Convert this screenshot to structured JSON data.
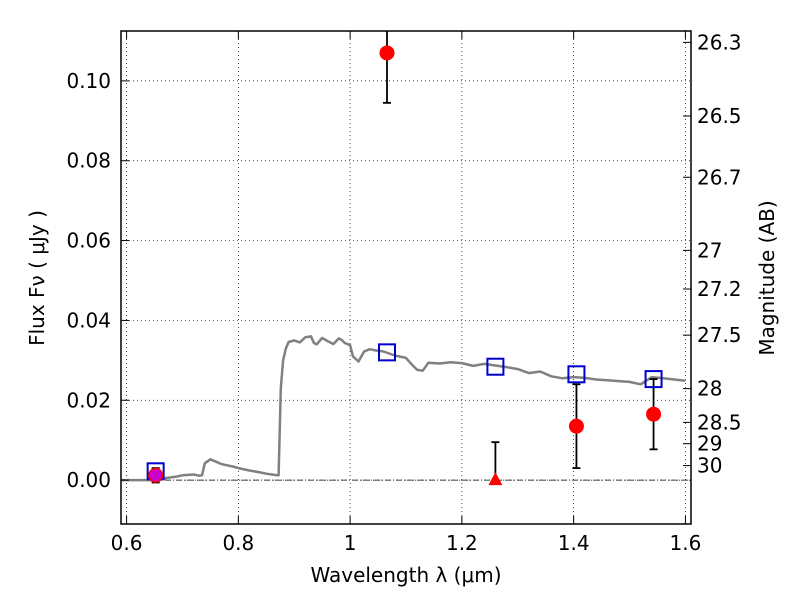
{
  "chart_data": {
    "type": "scatter",
    "xlabel": "Wavelength  λ (μm)",
    "ylabel": "Flux  Fν  ( μJy )",
    "y2label": "Magnitude (AB)",
    "xlim": [
      0.59,
      1.61
    ],
    "ylim": [
      -0.011,
      0.1125
    ],
    "grid": true,
    "x_ticks": [
      {
        "value": 0.6,
        "label": "0.6"
      },
      {
        "value": 0.8,
        "label": "0.8"
      },
      {
        "value": 1.0,
        "label": "1"
      },
      {
        "value": 1.2,
        "label": "1.2"
      },
      {
        "value": 1.4,
        "label": "1.4"
      },
      {
        "value": 1.6,
        "label": "1.6"
      }
    ],
    "y_ticks": [
      {
        "value": 0.0,
        "label": "0.00"
      },
      {
        "value": 0.02,
        "label": "0.02"
      },
      {
        "value": 0.04,
        "label": "0.04"
      },
      {
        "value": 0.06,
        "label": "0.06"
      },
      {
        "value": 0.08,
        "label": "0.08"
      },
      {
        "value": 0.1,
        "label": "0.10"
      }
    ],
    "y2_ticks": [
      {
        "value": 26.3,
        "label": "26.3"
      },
      {
        "value": 26.5,
        "label": "26.5"
      },
      {
        "value": 26.7,
        "label": "26.7"
      },
      {
        "value": 27.0,
        "label": "27"
      },
      {
        "value": 27.2,
        "label": "27.2"
      },
      {
        "value": 27.5,
        "label": "27.5"
      },
      {
        "value": 28.0,
        "label": "28"
      },
      {
        "value": 28.5,
        "label": "28.5"
      },
      {
        "value": 29.0,
        "label": "29"
      },
      {
        "value": 30.0,
        "label": "30"
      }
    ],
    "sed_model": {
      "color": "#808080",
      "x": [
        0.59,
        0.65,
        0.66,
        0.67,
        0.68,
        0.69,
        0.7,
        0.71,
        0.72,
        0.73,
        0.735,
        0.74,
        0.75,
        0.76,
        0.77,
        0.78,
        0.79,
        0.8,
        0.82,
        0.84,
        0.85,
        0.86,
        0.87,
        0.872,
        0.876,
        0.88,
        0.885,
        0.89,
        0.9,
        0.91,
        0.92,
        0.93,
        0.935,
        0.94,
        0.95,
        0.96,
        0.97,
        0.98,
        0.985,
        0.99,
        1.0,
        1.005,
        1.015,
        1.025,
        1.035,
        1.045,
        1.06,
        1.08,
        1.1,
        1.11,
        1.12,
        1.13,
        1.14,
        1.16,
        1.18,
        1.2,
        1.22,
        1.24,
        1.26,
        1.28,
        1.3,
        1.32,
        1.34,
        1.36,
        1.38,
        1.4,
        1.42,
        1.44,
        1.46,
        1.48,
        1.5,
        1.52,
        1.54,
        1.56,
        1.58,
        1.6
      ],
      "y": [
        0.0,
        0.0,
        0.0003,
        0.0005,
        0.0007,
        0.0009,
        0.0012,
        0.0013,
        0.0014,
        0.0011,
        0.0012,
        0.0042,
        0.0052,
        0.0046,
        0.004,
        0.0037,
        0.0034,
        0.003,
        0.0024,
        0.0019,
        0.0016,
        0.0014,
        0.0012,
        0.0012,
        0.023,
        0.03,
        0.033,
        0.0346,
        0.035,
        0.0345,
        0.0358,
        0.036,
        0.0344,
        0.034,
        0.0356,
        0.0348,
        0.0341,
        0.0355,
        0.0351,
        0.0344,
        0.0338,
        0.031,
        0.0297,
        0.0322,
        0.0328,
        0.0325,
        0.0322,
        0.0312,
        0.0306,
        0.029,
        0.0276,
        0.0274,
        0.0294,
        0.0292,
        0.0295,
        0.0293,
        0.0286,
        0.0291,
        0.0287,
        0.0283,
        0.0278,
        0.0268,
        0.0272,
        0.026,
        0.0255,
        0.0258,
        0.0256,
        0.0252,
        0.025,
        0.0248,
        0.0246,
        0.024,
        0.0258,
        0.0255,
        0.0252,
        0.0249
      ]
    },
    "model_photometry": {
      "color": "#0000cc",
      "x": [
        0.652,
        1.066,
        1.26,
        1.405,
        1.543
      ],
      "y": [
        0.0022,
        0.032,
        0.0284,
        0.0265,
        0.0253
      ]
    },
    "observed": {
      "color": "#ff0000",
      "points": [
        {
          "x": 0.652,
          "y": 0.0012,
          "err": 0.0018
        },
        {
          "x": 1.066,
          "y": 0.107,
          "err": 0.0125
        },
        {
          "x": 1.405,
          "y": 0.0135,
          "err": 0.0105
        },
        {
          "x": 1.543,
          "y": 0.0165,
          "err": 0.0088
        }
      ]
    },
    "upper_limit": {
      "color": "#ff0000",
      "x": 1.26,
      "y": 0.0,
      "err_top": 0.0095
    },
    "magenta_point": {
      "x": 0.652,
      "y": 0.0012,
      "color": "#cc00cc"
    },
    "zero_line": {
      "y": 0.0
    }
  }
}
